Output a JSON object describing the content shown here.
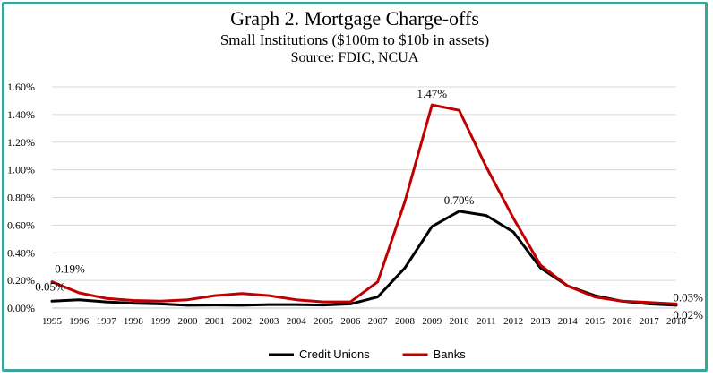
{
  "chart_data": {
    "type": "line",
    "title": "Graph 2. Mortgage Charge-offs",
    "subtitle": "Small Institutions ($100m to $10b in assets)",
    "source": "Source: FDIC, NCUA",
    "x": [
      "1995",
      "1996",
      "1997",
      "1998",
      "1999",
      "2000",
      "2001",
      "2002",
      "2003",
      "2004",
      "2005",
      "2006",
      "2007",
      "2008",
      "2009",
      "2010",
      "2011",
      "2012",
      "2013",
      "2014",
      "2015",
      "2016",
      "2017",
      "2018"
    ],
    "ylim": [
      0,
      0.016
    ],
    "yticks": [
      "0.00%",
      "0.20%",
      "0.40%",
      "0.60%",
      "0.80%",
      "1.00%",
      "1.20%",
      "1.40%",
      "1.60%"
    ],
    "ytick_values": [
      0,
      0.002,
      0.004,
      0.006,
      0.008,
      0.01,
      0.012,
      0.014,
      0.016
    ],
    "grid": true,
    "legend_position": "bottom",
    "series": [
      {
        "name": "Credit Unions",
        "color": "#000000",
        "values": [
          0.0005,
          0.0006,
          0.00045,
          0.00035,
          0.0003,
          0.0002,
          0.00022,
          0.0002,
          0.00025,
          0.00025,
          0.00022,
          0.0003,
          0.0008,
          0.0029,
          0.0059,
          0.007,
          0.0067,
          0.0055,
          0.0029,
          0.0016,
          0.0009,
          0.0005,
          0.0003,
          0.0002
        ]
      },
      {
        "name": "Banks",
        "color": "#c00000",
        "values": [
          0.0019,
          0.0011,
          0.0007,
          0.00055,
          0.0005,
          0.0006,
          0.0009,
          0.00105,
          0.0009,
          0.0006,
          0.00045,
          0.00045,
          0.0019,
          0.0077,
          0.0147,
          0.0143,
          0.0102,
          0.0065,
          0.0031,
          0.0016,
          0.0008,
          0.0005,
          0.0004,
          0.0003
        ]
      }
    ],
    "annotations": [
      {
        "text": "0.05%",
        "series": 0,
        "index": 0
      },
      {
        "text": "0.19%",
        "series": 1,
        "index": 0
      },
      {
        "text": "1.47%",
        "series": 1,
        "index": 14
      },
      {
        "text": "0.70%",
        "series": 0,
        "index": 15
      },
      {
        "text": "0.03%",
        "series": 1,
        "index": 23
      },
      {
        "text": "0.02%",
        "series": 0,
        "index": 23
      }
    ]
  }
}
